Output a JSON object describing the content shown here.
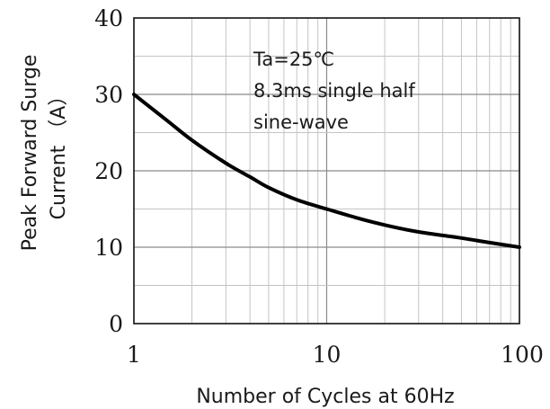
{
  "chart_data": {
    "type": "line",
    "x_scale": "log",
    "y_scale": "linear",
    "xlim": [
      1,
      100
    ],
    "ylim": [
      0,
      40
    ],
    "x_ticks": [
      "1",
      "10",
      "100"
    ],
    "y_ticks": [
      "0",
      "10",
      "20",
      "30",
      "40"
    ],
    "xlabel": "Number of Cycles at 60Hz",
    "ylabel_line1": "Peak Forward Surge",
    "ylabel_line2": "Current （A）",
    "grid": true,
    "annotation_lines": [
      "Ta=25℃",
      "8.3ms single half",
      "sine-wave"
    ],
    "series": [
      {
        "x": [
          1,
          1.5,
          2,
          3,
          4,
          5,
          7,
          10,
          15,
          20,
          30,
          50,
          70,
          100
        ],
        "y": [
          30,
          26.5,
          24,
          21,
          19.2,
          17.8,
          16.2,
          15,
          13.7,
          12.9,
          12,
          11.2,
          10.6,
          10
        ],
        "color": "#000000"
      }
    ]
  }
}
